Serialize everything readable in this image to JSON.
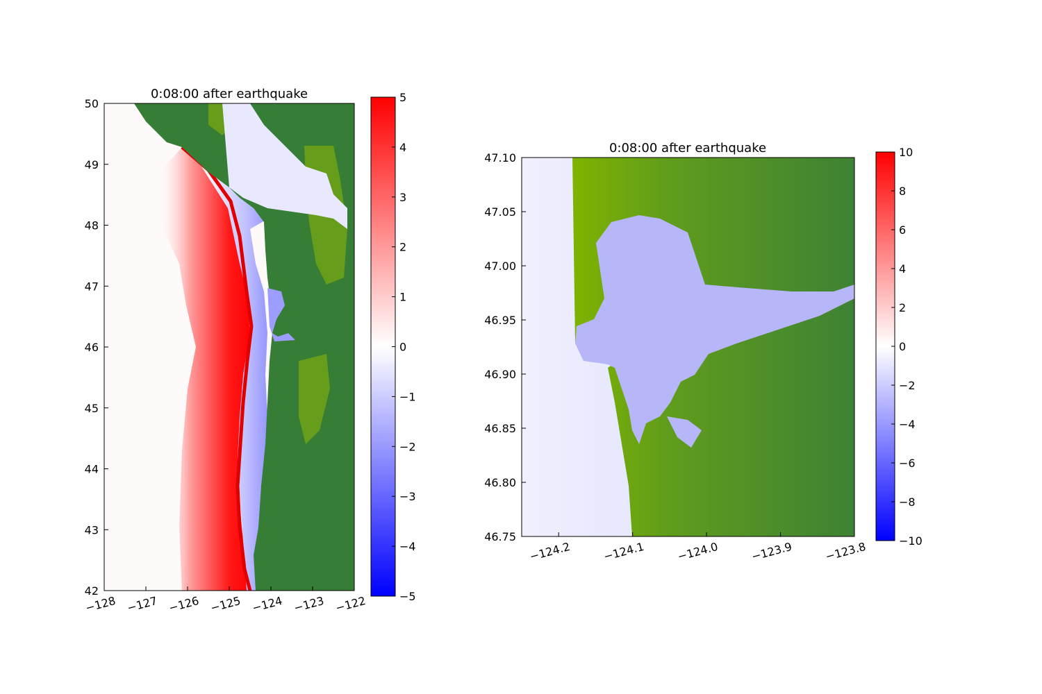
{
  "chart_data": [
    {
      "type": "heatmap",
      "title": "0:08:00 after earthquake",
      "xlim": [
        -128,
        -122
      ],
      "ylim": [
        42,
        50
      ],
      "x_ticks": [
        -128,
        -127,
        -126,
        -125,
        -124,
        -123,
        -122
      ],
      "y_ticks": [
        42,
        43,
        44,
        45,
        46,
        47,
        48,
        49,
        50
      ],
      "x_tick_labels": [
        "−128",
        "−127",
        "−126",
        "−125",
        "−124",
        "−123",
        "−122"
      ],
      "y_tick_labels": [
        "42",
        "43",
        "44",
        "45",
        "46",
        "47",
        "48",
        "49",
        "50"
      ],
      "colorbar": {
        "range": [
          -5,
          5
        ],
        "ticks": [
          5,
          4,
          3,
          2,
          1,
          0,
          -1,
          -2,
          -3,
          -4,
          -5
        ],
        "tick_labels": [
          "5",
          "4",
          "3",
          "2",
          "1",
          "0",
          "−1",
          "−2",
          "−3",
          "−4",
          "−5"
        ],
        "colormap": "bwr",
        "colors": {
          "low": "#0000ff",
          "mid": "#ffffff",
          "high": "#ff0000"
        }
      },
      "land_color": "#367d36",
      "lowland_color": "#7fb300",
      "grid": false
    },
    {
      "type": "heatmap",
      "title": "0:08:00 after earthquake",
      "xlim": [
        -124.25,
        -123.8
      ],
      "ylim": [
        46.75,
        47.1
      ],
      "x_ticks": [
        -124.2,
        -124.1,
        -124.0,
        -123.9,
        -123.8
      ],
      "y_ticks": [
        46.75,
        46.8,
        46.85,
        46.9,
        46.95,
        47.0,
        47.05,
        47.1
      ],
      "x_tick_labels": [
        "−124.2",
        "−124.1",
        "−124.0",
        "−123.9",
        "−123.8"
      ],
      "y_tick_labels": [
        "46.75",
        "46.80",
        "46.85",
        "46.90",
        "46.95",
        "47.00",
        "47.05",
        "47.10"
      ],
      "colorbar": {
        "range": [
          -10,
          10
        ],
        "ticks": [
          10,
          8,
          6,
          4,
          2,
          0,
          -2,
          -4,
          -6,
          -8,
          -10
        ],
        "tick_labels": [
          "10",
          "8",
          "6",
          "4",
          "2",
          "0",
          "−2",
          "−4",
          "−6",
          "−8",
          "−10"
        ],
        "colormap": "bwr",
        "colors": {
          "low": "#0000ff",
          "mid": "#ffffff",
          "high": "#ff0000"
        }
      },
      "land_color": "#367d36",
      "lowland_color": "#7fb300",
      "grid": false
    }
  ]
}
